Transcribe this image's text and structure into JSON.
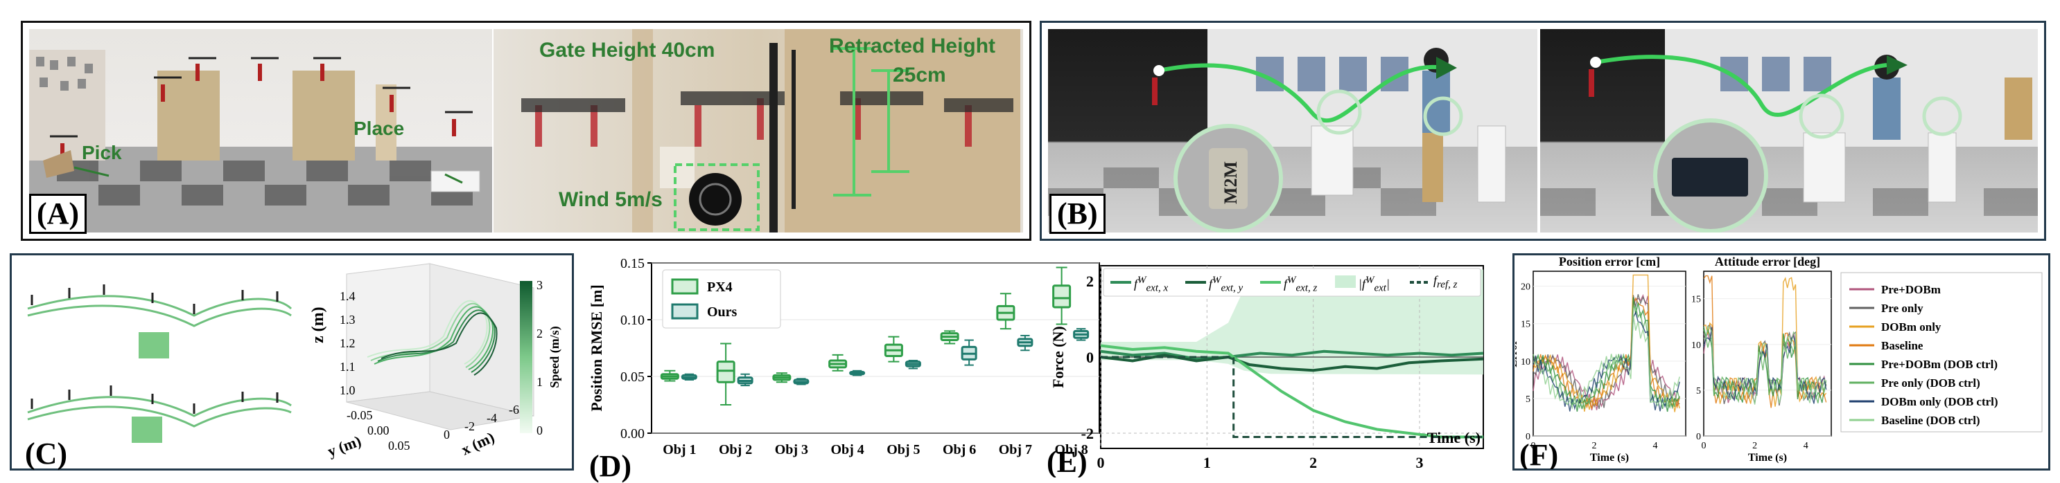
{
  "panels": {
    "A": {
      "label": "(A)",
      "pick": "Pick",
      "place": "Place",
      "gate_height": "Gate Height 40cm",
      "retracted_height": "Retracted Height",
      "retracted_value": "25cm",
      "wind": "Wind 5m/s"
    },
    "B": {
      "label": "(B)",
      "can_text": "M2M"
    },
    "C": {
      "label": "(C)",
      "zlabel": "z (m)",
      "ylabel": "y (m)",
      "xlabel": "x (m)",
      "colorbar_label": "Speed (m/s)",
      "colorbar_ticks": [
        "3",
        "2",
        "1",
        "0"
      ],
      "z_ticks": [
        "1.4",
        "1.3",
        "1.2",
        "1.1",
        "1.0"
      ],
      "y_ticks": [
        "-0.05",
        "0.00",
        "0.05"
      ],
      "x_ticks": [
        "0",
        "-2",
        "-4",
        "-6"
      ]
    },
    "D": {
      "label": "(D)"
    },
    "E": {
      "label": "(E)"
    },
    "F": {
      "label": "(F)"
    }
  },
  "chart_data": [
    {
      "id": "D",
      "type": "box",
      "ylabel": "Position RMSE [m]",
      "ylim": [
        0.0,
        0.15
      ],
      "yticks": [
        "0.00",
        "0.05",
        "0.10",
        "0.15"
      ],
      "categories": [
        "Obj 1",
        "Obj 2",
        "Obj 3",
        "Obj 4",
        "Obj 5",
        "Obj 6",
        "Obj 7",
        "Obj 8"
      ],
      "legend": "top-left",
      "colors": {
        "PX4": "#2e9e48",
        "Ours": "#1f7a6e"
      },
      "series": [
        {
          "name": "PX4",
          "boxes": [
            {
              "whislo": 0.046,
              "q1": 0.048,
              "med": 0.05,
              "q3": 0.052,
              "whishi": 0.055
            },
            {
              "whislo": 0.025,
              "q1": 0.045,
              "med": 0.055,
              "q3": 0.063,
              "whishi": 0.079
            },
            {
              "whislo": 0.045,
              "q1": 0.047,
              "med": 0.049,
              "q3": 0.051,
              "whishi": 0.053
            },
            {
              "whislo": 0.055,
              "q1": 0.058,
              "med": 0.061,
              "q3": 0.064,
              "whishi": 0.069
            },
            {
              "whislo": 0.063,
              "q1": 0.068,
              "med": 0.073,
              "q3": 0.078,
              "whishi": 0.085
            },
            {
              "whislo": 0.079,
              "q1": 0.082,
              "med": 0.085,
              "q3": 0.088,
              "whishi": 0.09
            },
            {
              "whislo": 0.092,
              "q1": 0.1,
              "med": 0.106,
              "q3": 0.112,
              "whishi": 0.123
            },
            {
              "whislo": 0.096,
              "q1": 0.111,
              "med": 0.119,
              "q3": 0.13,
              "whishi": 0.146
            }
          ]
        },
        {
          "name": "Ours",
          "boxes": [
            {
              "whislo": 0.047,
              "q1": 0.048,
              "med": 0.049,
              "q3": 0.051,
              "whishi": 0.052
            },
            {
              "whislo": 0.042,
              "q1": 0.044,
              "med": 0.046,
              "q3": 0.049,
              "whishi": 0.052
            },
            {
              "whislo": 0.043,
              "q1": 0.044,
              "med": 0.045,
              "q3": 0.047,
              "whishi": 0.048
            },
            {
              "whislo": 0.051,
              "q1": 0.052,
              "med": 0.053,
              "q3": 0.054,
              "whishi": 0.055
            },
            {
              "whislo": 0.057,
              "q1": 0.059,
              "med": 0.061,
              "q3": 0.063,
              "whishi": 0.064
            },
            {
              "whislo": 0.06,
              "q1": 0.065,
              "med": 0.07,
              "q3": 0.076,
              "whishi": 0.082
            },
            {
              "whislo": 0.073,
              "q1": 0.077,
              "med": 0.08,
              "q3": 0.083,
              "whishi": 0.086
            },
            {
              "whislo": 0.082,
              "q1": 0.084,
              "med": 0.087,
              "q3": 0.09,
              "whishi": 0.092
            }
          ]
        }
      ]
    },
    {
      "id": "E",
      "type": "line",
      "ylabel": "Force (N)",
      "xlabel": "Time (s)",
      "xlim": [
        0,
        3.6
      ],
      "ylim": [
        -2.4,
        2.4
      ],
      "xticks": [
        "0",
        "1",
        "2",
        "3"
      ],
      "yticks": [
        "2",
        "0",
        "-2"
      ],
      "legend": "top",
      "legend_html": [
        "f<sup>W</sup><sub>ext, x</sub>",
        "f<sup>W</sup><sub>ext, y</sub>",
        "f<sup>W</sup><sub>ext, z</sub>",
        "|f<sup>W</sup><sub>ext</sub>|",
        "f<sub>ref, z</sub>"
      ],
      "series": [
        {
          "name": "fext_x",
          "color": "#2e8b57",
          "x": [
            0,
            0.3,
            0.6,
            0.9,
            1.2,
            1.5,
            1.8,
            2.1,
            2.4,
            2.7,
            3.0,
            3.3,
            3.6
          ],
          "y": [
            0.15,
            0.05,
            0.1,
            -0.05,
            0.0,
            0.1,
            0.05,
            0.15,
            0.1,
            0.05,
            0.1,
            0.05,
            0.1
          ]
        },
        {
          "name": "fext_y",
          "color": "#1b5e3a",
          "x": [
            0,
            0.3,
            0.6,
            0.9,
            1.2,
            1.4,
            1.7,
            2.0,
            2.3,
            2.6,
            2.9,
            3.2,
            3.6
          ],
          "y": [
            0.0,
            -0.1,
            0.05,
            -0.1,
            0.0,
            -0.2,
            -0.3,
            -0.35,
            -0.25,
            -0.3,
            -0.15,
            -0.1,
            -0.05
          ]
        },
        {
          "name": "fext_z",
          "color": "#52c46e",
          "x": [
            0,
            0.3,
            0.6,
            0.9,
            1.2,
            1.4,
            1.7,
            2.0,
            2.3,
            2.6,
            2.9,
            3.2,
            3.6
          ],
          "y": [
            0.3,
            0.2,
            0.25,
            0.15,
            0.1,
            -0.3,
            -0.9,
            -1.4,
            -1.7,
            -1.9,
            -2.0,
            -2.1,
            -2.1
          ]
        },
        {
          "name": "fref_z",
          "color": "#1f4e3d",
          "dashed": true,
          "x": [
            0,
            1.25,
            1.25,
            3.6
          ],
          "y": [
            0,
            0,
            -2.1,
            -2.1
          ]
        }
      ],
      "band": {
        "name": "|fext|",
        "color": "#cdeed6",
        "x": [
          0,
          0.9,
          1.2,
          1.35,
          1.6,
          3.6
        ],
        "y": [
          0.4,
          0.4,
          0.9,
          1.8,
          2.2,
          2.3
        ]
      }
    },
    {
      "id": "F1",
      "type": "line",
      "title": "Position error [cm]",
      "ylabel": "Error",
      "xlabel": "Time (s)",
      "xlim": [
        0,
        5
      ],
      "ylim": [
        0,
        22
      ],
      "xticks": [
        "0",
        "2",
        "4"
      ],
      "yticks": [
        "0",
        "5",
        "10",
        "15",
        "20"
      ]
    },
    {
      "id": "F2",
      "type": "line",
      "title": "Attitude error [deg]",
      "xlabel": "Time (s)",
      "xlim": [
        0,
        5
      ],
      "ylim": [
        0,
        18
      ],
      "xticks": [
        "0",
        "2",
        "4"
      ],
      "yticks": [
        "0",
        "5",
        "10",
        "15"
      ]
    }
  ],
  "f_legend": {
    "position": "right",
    "entries": [
      {
        "name": "Pre+DOBm",
        "color": "#b0557c"
      },
      {
        "name": "Pre only",
        "color": "#606060"
      },
      {
        "name": "DOBm only",
        "color": "#e6a020"
      },
      {
        "name": "Baseline",
        "color": "#e07a10"
      },
      {
        "name": "Pre+DOBm (DOB ctrl)",
        "color": "#2f8f3f"
      },
      {
        "name": "Pre only (DOB ctrl)",
        "color": "#60b060"
      },
      {
        "name": "DOBm only (DOB ctrl)",
        "color": "#1f3f6e"
      },
      {
        "name": "Baseline (DOB ctrl)",
        "color": "#90d090"
      }
    ]
  }
}
